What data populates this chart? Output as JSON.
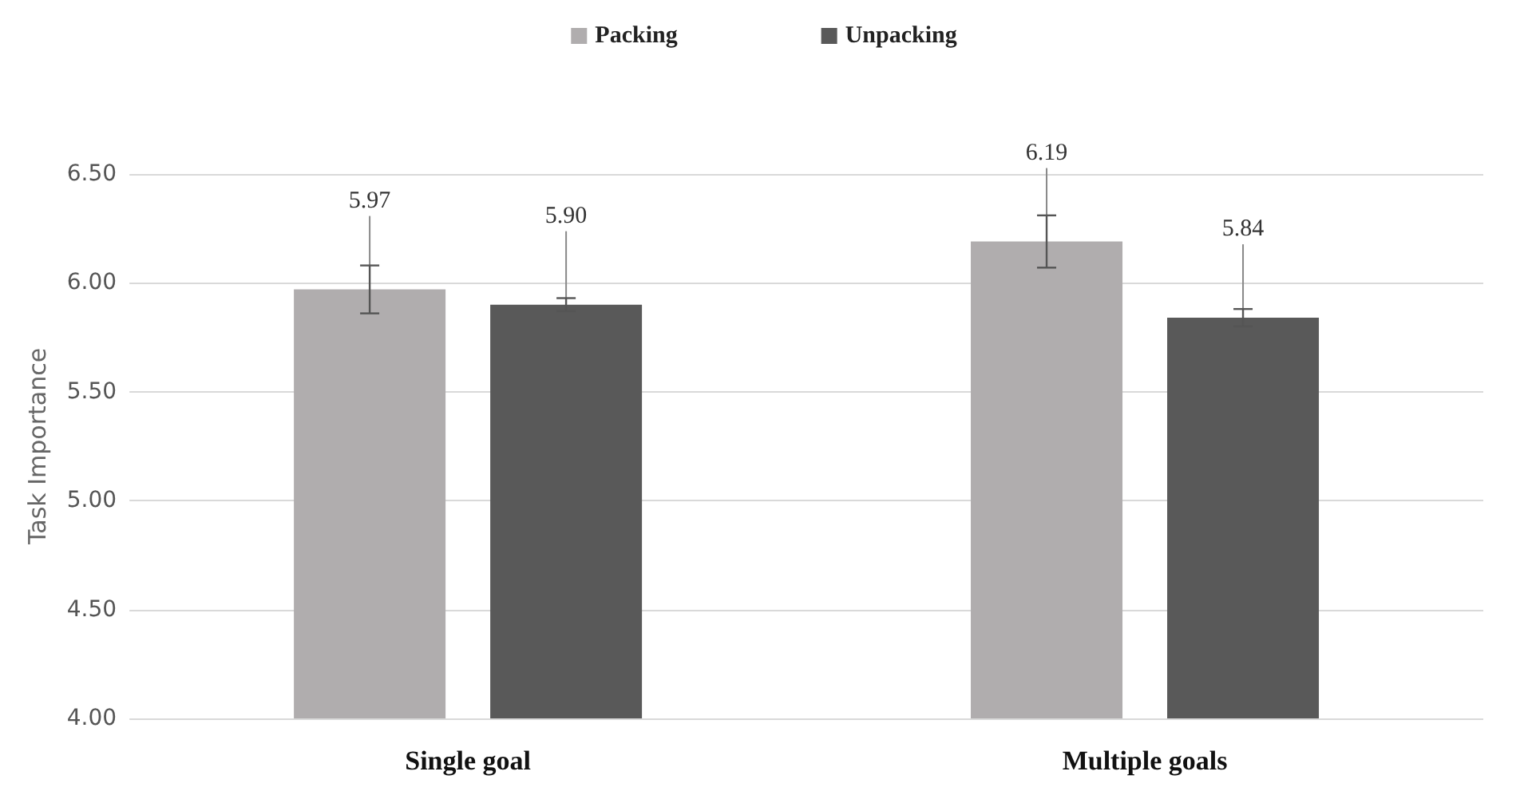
{
  "chart_data": {
    "type": "bar",
    "ylabel": "Task Importance",
    "categories": [
      "Single goal",
      "Multiple goals"
    ],
    "series": [
      {
        "name": "Packing",
        "color": "#b0adae",
        "values": [
          5.97,
          6.19
        ],
        "errors": [
          0.11,
          0.12
        ],
        "value_labels": [
          "5.97",
          "6.19"
        ]
      },
      {
        "name": "Unpacking",
        "color": "#595959",
        "values": [
          5.9,
          5.84
        ],
        "errors": [
          0.03,
          0.04
        ],
        "value_labels": [
          "5.90",
          "5.84"
        ]
      }
    ],
    "ylim": [
      4,
      6.5
    ],
    "yticks": [
      {
        "value": 4,
        "label": "4.00"
      },
      {
        "value": 4.5,
        "label": "4.50"
      },
      {
        "value": 5,
        "label": "5.00"
      },
      {
        "value": 5.5,
        "label": "5.50"
      },
      {
        "value": 6,
        "label": "6.00"
      },
      {
        "value": 6.5,
        "label": "6.50"
      }
    ],
    "grid": "y",
    "legend": "top"
  }
}
